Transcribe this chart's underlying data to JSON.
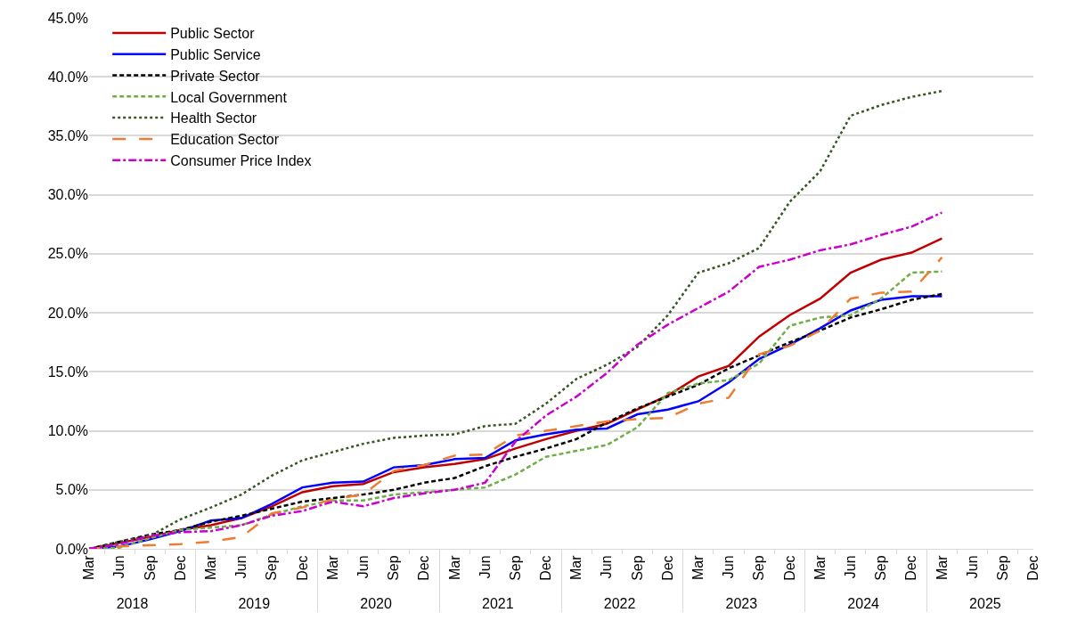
{
  "chart_data": {
    "type": "line",
    "categories": [
      "Mar",
      "Jun",
      "Sep",
      "Dec",
      "Mar",
      "Jun",
      "Sep",
      "Dec",
      "Mar",
      "Jun",
      "Sep",
      "Dec",
      "Mar",
      "Jun",
      "Sep",
      "Dec",
      "Mar",
      "Jun",
      "Sep",
      "Dec",
      "Mar",
      "Jun",
      "Sep",
      "Dec",
      "Mar",
      "Jun",
      "Sep",
      "Dec",
      "Mar",
      "Jun",
      "Sep",
      "Dec"
    ],
    "annotations": [
      "2018",
      "2019",
      "2020",
      "2021",
      "2022",
      "2023",
      "2024",
      "2025"
    ],
    "series": [
      {
        "name": "Public Sector",
        "color": "#c00000",
        "line_style": "solid",
        "values": [
          0,
          0.5,
          1.0,
          1.6,
          2.0,
          2.6,
          3.6,
          4.8,
          5.3,
          5.5,
          6.5,
          6.9,
          7.2,
          7.6,
          8.5,
          9.3,
          10.0,
          10.6,
          11.8,
          13.0,
          14.6,
          15.5,
          18.0,
          19.8,
          21.2,
          23.4,
          24.5,
          25.1,
          26.3,
          null,
          null,
          null
        ]
      },
      {
        "name": "Public Service",
        "color": "#0000ff",
        "line_style": "solid",
        "values": [
          0,
          0.2,
          0.8,
          1.5,
          2.4,
          2.6,
          3.8,
          5.2,
          5.6,
          5.7,
          6.9,
          7.1,
          7.6,
          7.7,
          9.2,
          9.7,
          10.1,
          10.2,
          11.4,
          11.8,
          12.5,
          14.1,
          16.1,
          17.3,
          18.7,
          20.2,
          21.1,
          21.4,
          21.4,
          null,
          null,
          null
        ]
      },
      {
        "name": "Private Sector",
        "color": "#000000",
        "line_style": "dashed",
        "values": [
          0,
          0.6,
          1.2,
          1.6,
          2.3,
          2.8,
          3.4,
          4.0,
          4.3,
          4.6,
          5.0,
          5.6,
          6.0,
          7.0,
          7.8,
          8.5,
          9.3,
          10.7,
          11.9,
          12.9,
          13.9,
          15.3,
          16.4,
          17.5,
          18.5,
          19.6,
          20.3,
          21.1,
          21.6,
          null,
          null,
          null
        ]
      },
      {
        "name": "Local Government",
        "color": "#70ad47",
        "line_style": "dashed",
        "values": [
          0,
          0.1,
          0.9,
          1.6,
          1.8,
          2.0,
          2.9,
          3.6,
          4.1,
          4.1,
          4.6,
          4.8,
          5.0,
          5.2,
          6.3,
          7.8,
          8.3,
          8.8,
          10.3,
          13.2,
          14.0,
          14.3,
          15.7,
          18.9,
          19.6,
          19.8,
          21.2,
          23.4,
          23.5,
          null,
          null,
          null
        ]
      },
      {
        "name": "Health Sector",
        "color": "#375623",
        "line_style": "dotted",
        "values": [
          0,
          0.6,
          1.1,
          2.5,
          3.5,
          4.6,
          6.2,
          7.5,
          8.2,
          8.9,
          9.4,
          9.6,
          9.7,
          10.4,
          10.6,
          12.3,
          14.4,
          15.6,
          17.1,
          19.8,
          23.4,
          24.2,
          25.5,
          29.4,
          32.0,
          36.7,
          37.6,
          38.3,
          38.8,
          null,
          null,
          null
        ]
      },
      {
        "name": "Education Sector",
        "color": "#ed7d31",
        "line_style": "longdash",
        "values": [
          0,
          0.2,
          0.3,
          0.4,
          0.6,
          1.0,
          3.0,
          3.5,
          4.2,
          4.6,
          6.6,
          7.1,
          7.9,
          8.0,
          9.6,
          10.0,
          10.4,
          10.8,
          11.0,
          11.1,
          12.3,
          12.8,
          16.5,
          17.2,
          18.5,
          21.2,
          21.7,
          21.8,
          24.7,
          null,
          null,
          null
        ]
      },
      {
        "name": "Consumer Price Index",
        "color": "#cc00cc",
        "line_style": "dashdot",
        "values": [
          0,
          0.4,
          1.1,
          1.4,
          1.5,
          2.0,
          2.8,
          3.2,
          4.0,
          3.6,
          4.3,
          4.7,
          5.0,
          5.6,
          9.1,
          11.3,
          12.9,
          14.9,
          17.3,
          19.0,
          20.4,
          21.8,
          23.9,
          24.5,
          25.3,
          25.8,
          26.6,
          27.3,
          28.5,
          null,
          null,
          null
        ]
      }
    ],
    "ylim": [
      0,
      45
    ],
    "yticks": [
      {
        "value": 0,
        "label": "0.0%"
      },
      {
        "value": 5,
        "label": "5.0%"
      },
      {
        "value": 10,
        "label": "10.0%"
      },
      {
        "value": 15,
        "label": "15.0%"
      },
      {
        "value": 20,
        "label": "20.0%"
      },
      {
        "value": 25,
        "label": "25.0%"
      },
      {
        "value": 30,
        "label": "30.0%"
      },
      {
        "value": 35,
        "label": "35.0%"
      },
      {
        "value": 40,
        "label": "40.0%"
      },
      {
        "value": 45,
        "label": "45.0%"
      }
    ],
    "grid": "y",
    "legend": "top left",
    "marker": "none"
  }
}
